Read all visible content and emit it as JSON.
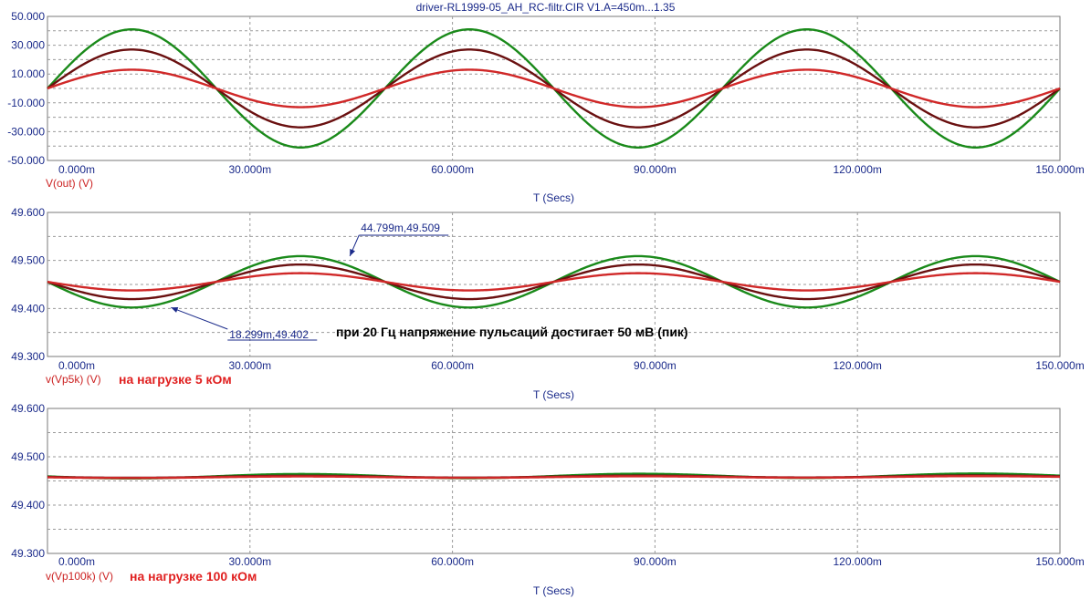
{
  "window": {
    "title": "driver-RL1999-05_AH_RC-filtr.CIR V1.A=450m...1.35"
  },
  "colors": {
    "axis_text": "#1a2a8a",
    "grid": "#9a9a9a",
    "series_green": "#1a8a1a",
    "series_maroon": "#6a1010",
    "series_red": "#d02828",
    "expr_label": "#cc2222",
    "note_red": "#e02020"
  },
  "chart_data": [
    {
      "type": "line",
      "xlabel": "T (Secs)",
      "ylabel": "V(out) (V)",
      "note": "",
      "xlim": [
        0,
        0.15
      ],
      "ylim": [
        -50,
        50
      ],
      "x_ticks": [
        "0.000m",
        "30.000m",
        "60.000m",
        "90.000m",
        "120.000m",
        "150.000m"
      ],
      "y_ticks": [
        "50.000",
        "30.000",
        "10.000",
        "-10.000",
        "-30.000",
        "-50.000"
      ],
      "series": [
        {
          "color": "green",
          "waveform": "sine",
          "offset": 0,
          "amplitude": 41,
          "frequency_hz": 20,
          "phase": "sine"
        },
        {
          "color": "maroon",
          "waveform": "sine",
          "offset": 0,
          "amplitude": 27,
          "frequency_hz": 20,
          "phase": "sine"
        },
        {
          "color": "red",
          "waveform": "sine",
          "offset": 0,
          "amplitude": 13,
          "frequency_hz": 20,
          "phase": "sine"
        }
      ]
    },
    {
      "type": "line",
      "xlabel": "T (Secs)",
      "ylabel": "v(Vp5k) (V)",
      "note": "на нагрузке 5 кОм",
      "xlim": [
        0,
        0.15
      ],
      "ylim": [
        49.3,
        49.6
      ],
      "x_ticks": [
        "0.000m",
        "30.000m",
        "60.000m",
        "90.000m",
        "120.000m",
        "150.000m"
      ],
      "y_ticks": [
        "49.600",
        "49.500",
        "49.400",
        "49.300"
      ],
      "series": [
        {
          "color": "green",
          "waveform": "neg_sine",
          "offset": 49.4555,
          "amplitude": 0.0535,
          "frequency_hz": 20
        },
        {
          "color": "maroon",
          "waveform": "neg_sine",
          "offset": 49.4555,
          "amplitude": 0.036,
          "frequency_hz": 20
        },
        {
          "color": "red",
          "waveform": "neg_sine",
          "offset": 49.4555,
          "amplitude": 0.018,
          "frequency_hz": 20
        }
      ],
      "annotations": [
        {
          "label": "44.799m,49.509",
          "x": 0.044799,
          "y": 49.509
        },
        {
          "label": "18.299m,49.402",
          "x": 0.018299,
          "y": 49.402
        },
        {
          "label": "при 20 Гц напряжение пульсаций достигает 50 мВ (пик)"
        }
      ]
    },
    {
      "type": "line",
      "xlabel": "T (Secs)",
      "ylabel": "v(Vp100k) (V)",
      "note": "на нагрузке 100 кОм",
      "xlim": [
        0,
        0.15
      ],
      "ylim": [
        49.3,
        49.6
      ],
      "x_ticks": [
        "0.000m",
        "30.000m",
        "60.000m",
        "90.000m",
        "120.000m",
        "150.000m"
      ],
      "y_ticks": [
        "49.600",
        "49.500",
        "49.400",
        "49.300"
      ],
      "series": [
        {
          "color": "green",
          "waveform": "neg_sine",
          "offset": 49.4595,
          "amplitude": 0.0045,
          "frequency_hz": 20,
          "drift": 0.003
        },
        {
          "color": "maroon",
          "waveform": "neg_sine",
          "offset": 49.4585,
          "amplitude": 0.002,
          "frequency_hz": 20,
          "drift": 0.002
        },
        {
          "color": "red",
          "waveform": "neg_sine",
          "offset": 49.4575,
          "amplitude": 0.0015,
          "frequency_hz": 20,
          "drift": 0.002
        }
      ]
    }
  ]
}
